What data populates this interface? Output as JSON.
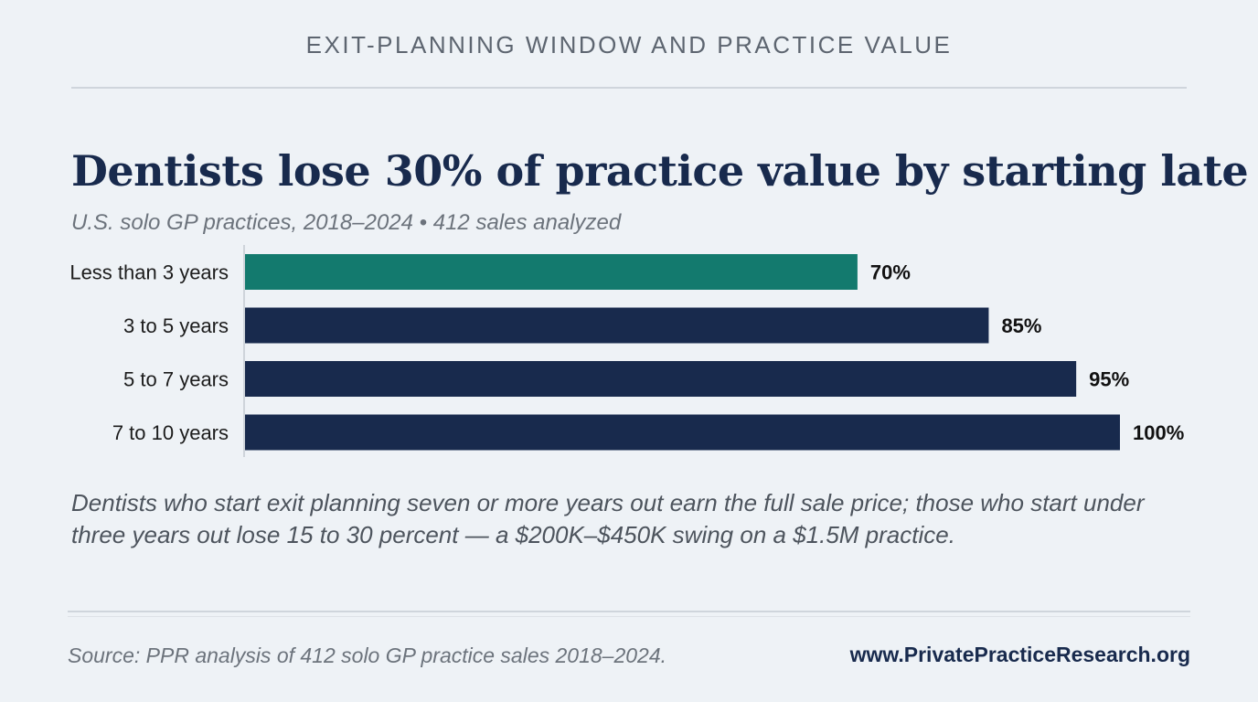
{
  "kicker": "EXIT-PLANNING WINDOW AND PRACTICE VALUE",
  "headline": "Dentists lose 30% of practice value by starting late",
  "subtitle": "U.S. solo GP practices, 2018–2024 • 412 sales analyzed",
  "takeaway": "Dentists who start exit planning seven or more years out earn the full sale price; those who start under three years out lose 15 to 30 percent — a $200K–$450K swing on a $1.5M practice.",
  "footer": {
    "source": "Source: PPR analysis of 412 solo GP practice sales 2018–2024.",
    "website": "www.PrivatePracticeResearch.org"
  },
  "colors": {
    "highlight": "#137a6e",
    "bar": "#182a4d",
    "label": "#1c1c1c"
  },
  "chart_data": {
    "type": "bar",
    "orientation": "horizontal",
    "categories": [
      "Less than 3 years",
      "3 to 5 years",
      "5 to 7 years",
      "7 to 10 years"
    ],
    "values": [
      70,
      85,
      95,
      100
    ],
    "value_labels": [
      "70%",
      "85%",
      "95%",
      "100%"
    ],
    "highlight_index": 0,
    "xlim": [
      0,
      100
    ],
    "grid": false,
    "legend": "none"
  }
}
